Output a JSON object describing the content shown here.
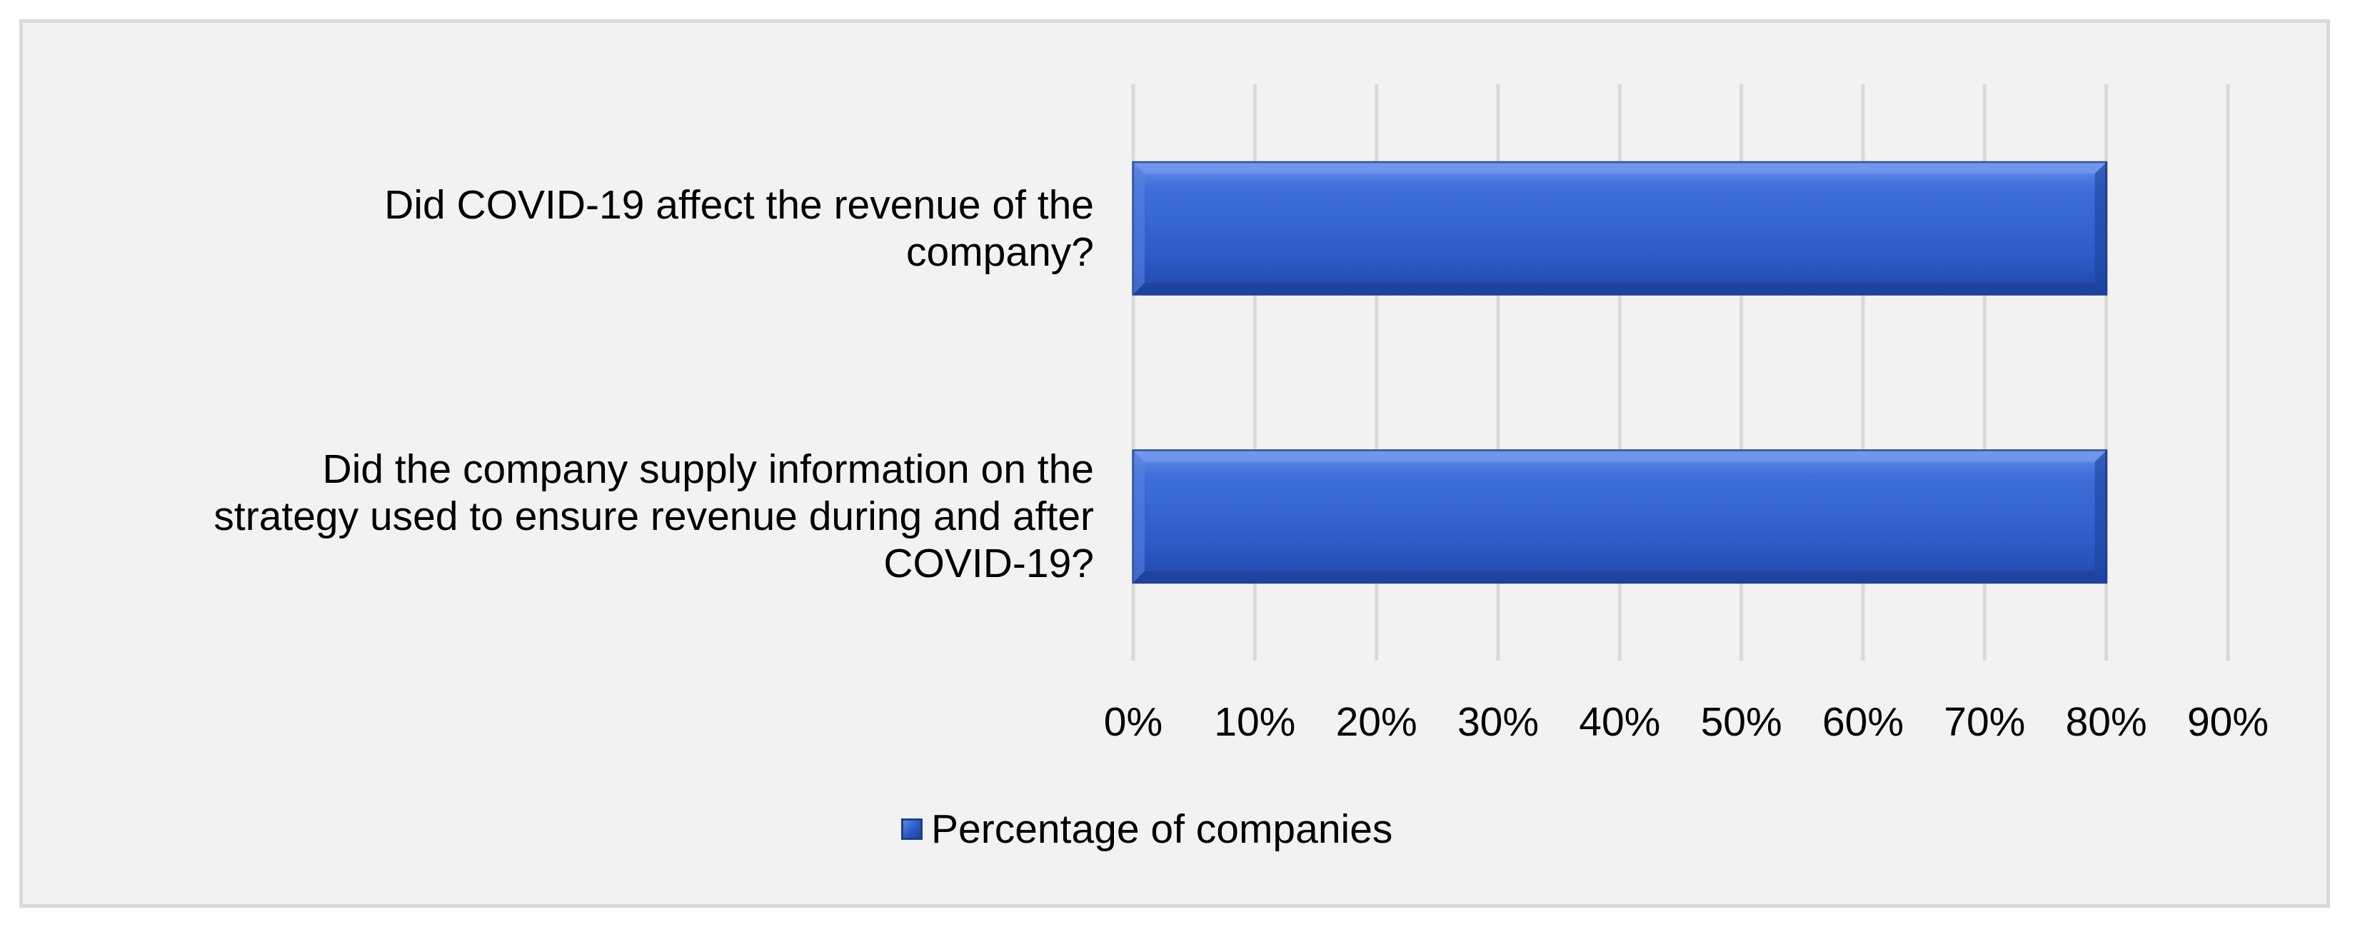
{
  "chart_data": {
    "type": "bar",
    "orientation": "horizontal",
    "categories": [
      "Did COVID-19 affect the revenue of the company?",
      "Did the company supply information on the strategy used to ensure revenue during and after COVID-19?"
    ],
    "category_lines": [
      [
        "Did COVID-19 affect the revenue of the",
        "company?"
      ],
      [
        "Did the company supply information on the",
        "strategy used to ensure revenue during and after",
        "COVID-19?"
      ]
    ],
    "series": [
      {
        "name": "Percentage of companies",
        "values": [
          0.8,
          0.8
        ]
      }
    ],
    "xlim": [
      0,
      0.9
    ],
    "x_ticks": [
      0,
      0.1,
      0.2,
      0.3,
      0.4,
      0.5,
      0.6,
      0.7,
      0.8,
      0.9
    ],
    "x_tick_labels": [
      "0%",
      "10%",
      "20%",
      "30%",
      "40%",
      "50%",
      "60%",
      "70%",
      "80%",
      "90%"
    ],
    "grid": true,
    "legend": "bottom",
    "title": "",
    "xlabel": "",
    "ylabel": "",
    "colors": {
      "bar_fill": "#2f5fd0",
      "bar_light": "#5b86e0",
      "bar_dark": "#1d429c",
      "bar_edge": "#1f3f8f",
      "grid": "#d9d9d9",
      "plot_background": "#f2f2f2"
    }
  }
}
